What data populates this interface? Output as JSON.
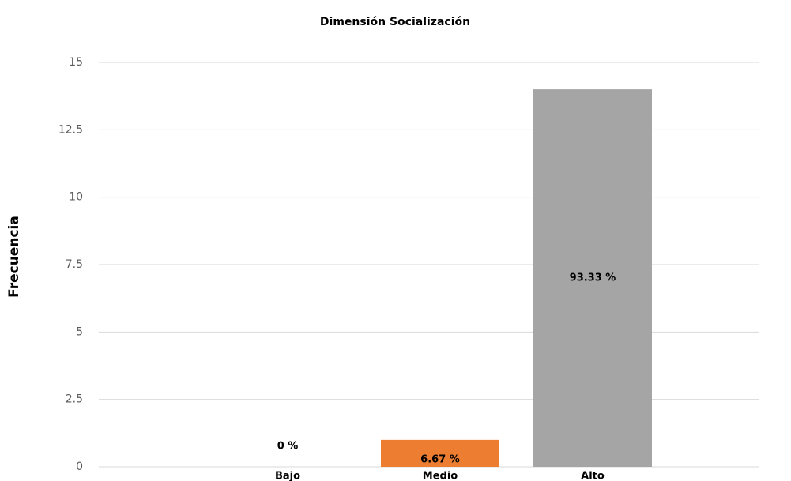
{
  "chart_data": {
    "type": "bar",
    "title": "Dimensión Socialización",
    "y_label": "Frecuencia",
    "categories": [
      "Bajo",
      "Medio",
      "Alto"
    ],
    "values": [
      0,
      1,
      14
    ],
    "data_labels": [
      "0 %",
      "6.67 %",
      "93.33 %"
    ],
    "colors": [
      "#4472c4",
      "#ed7d31",
      "#a5a5a5"
    ],
    "ylim": [
      0,
      15
    ],
    "yticks": [
      0,
      2.5,
      5,
      7.5,
      10,
      12.5,
      15
    ],
    "grid": true
  }
}
